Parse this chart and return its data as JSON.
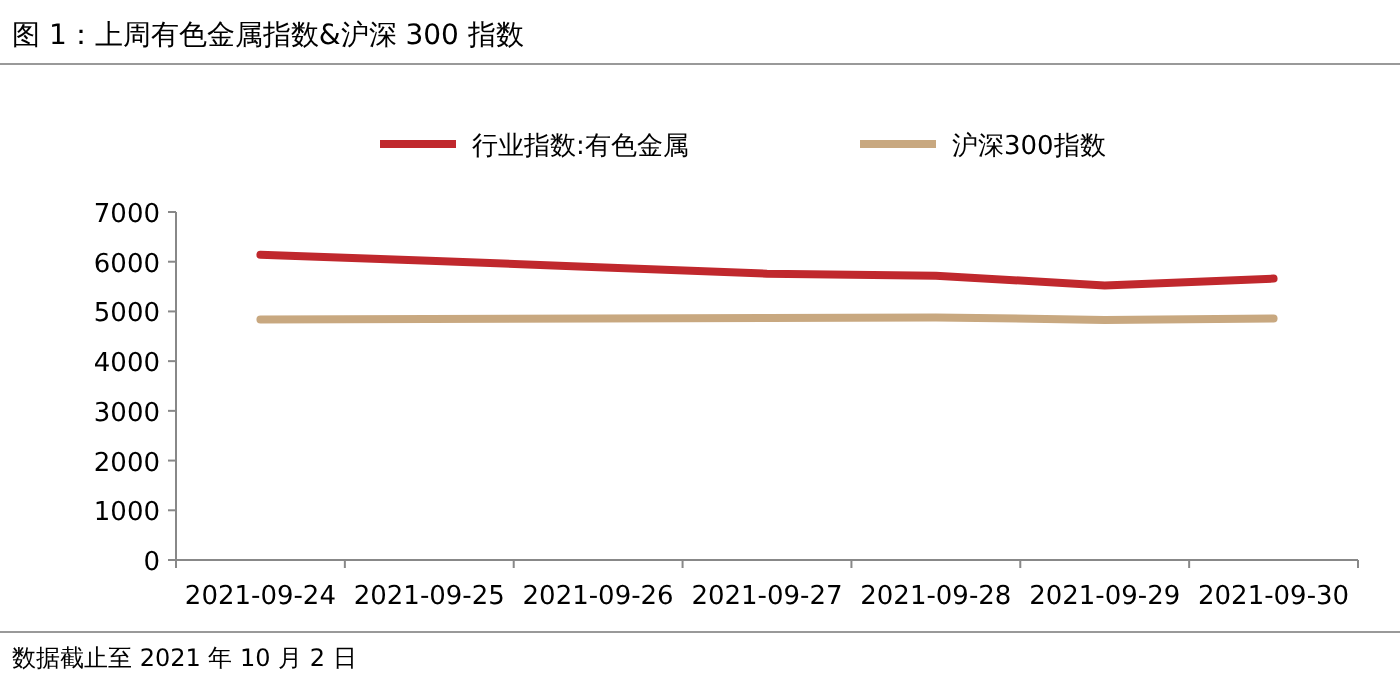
{
  "chart_data": {
    "type": "line",
    "title": "图 1：上周有色金属指数&沪深 300 指数",
    "categories": [
      "2021-09-24",
      "2021-09-25",
      "2021-09-26",
      "2021-09-27",
      "2021-09-28",
      "2021-09-29",
      "2021-09-30"
    ],
    "series": [
      {
        "name": "行业指数:有色金属",
        "color": "#c0282d",
        "values": [
          6140,
          6020,
          5890,
          5760,
          5720,
          5520,
          5660
        ]
      },
      {
        "name": "沪深300指数",
        "color": "#c8a880",
        "values": [
          4840,
          4850,
          4860,
          4870,
          4880,
          4830,
          4860
        ]
      }
    ],
    "ylim": [
      0,
      7000
    ],
    "yticks": [
      0,
      1000,
      2000,
      3000,
      4000,
      5000,
      6000,
      7000
    ],
    "legend": "top",
    "annotations": [
      "数据截止至 2021 年 10 月 2 日"
    ]
  }
}
